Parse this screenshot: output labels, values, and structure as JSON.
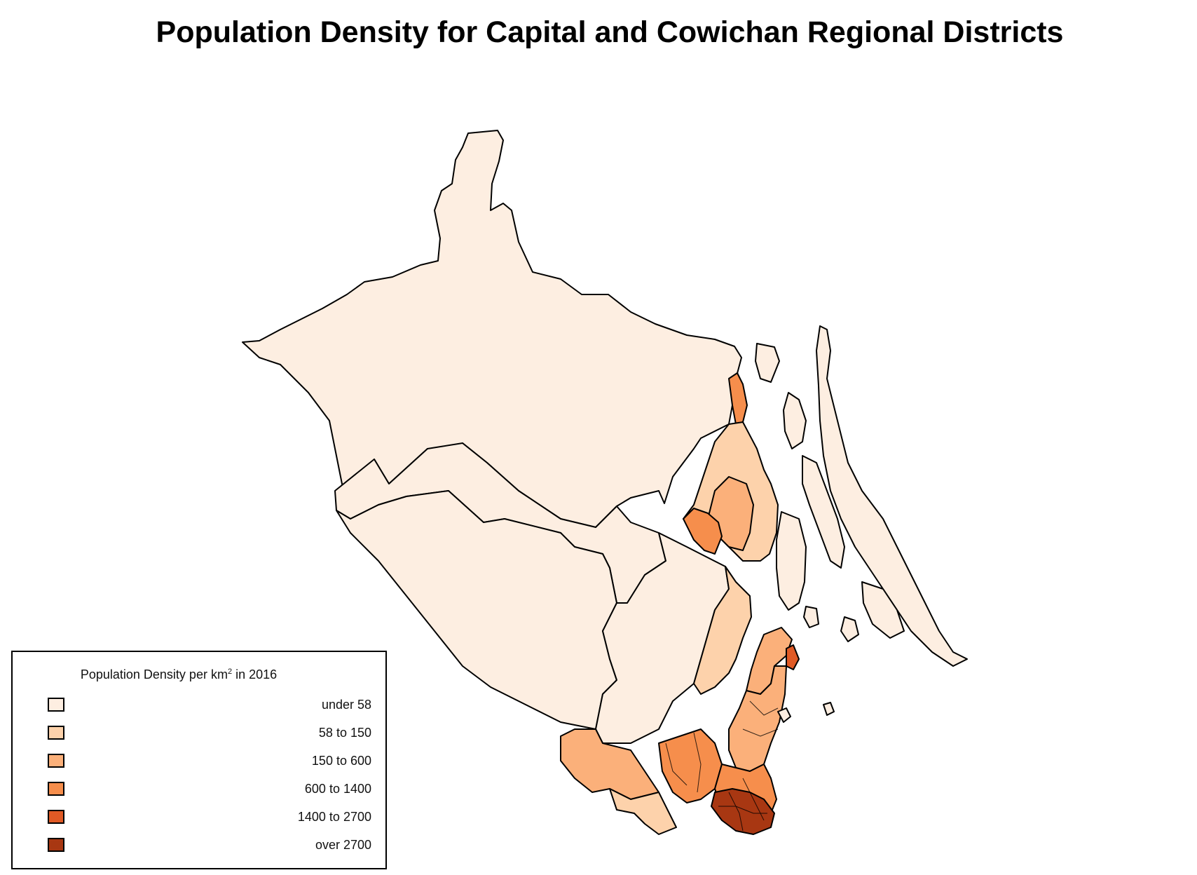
{
  "title": "Population Density for Capital and Cowichan Regional Districts",
  "legend": {
    "title_prefix": "Population Density per km",
    "title_sup": "2",
    "title_suffix": " in 2016",
    "items": [
      {
        "label": "under 58",
        "color": "#fdeee1"
      },
      {
        "label": "58 to 150",
        "color": "#fdd2ab"
      },
      {
        "label": "150 to 600",
        "color": "#fbb07a"
      },
      {
        "label": "600 to 1400",
        "color": "#f68e4c"
      },
      {
        "label": "1400 to 2700",
        "color": "#e05a25"
      },
      {
        "label": "over 2700",
        "color": "#a83712"
      }
    ]
  },
  "map_regions": [
    {
      "name": "west-coast-rural",
      "class": 0
    },
    {
      "name": "cowichan-lake-rural",
      "class": 0
    },
    {
      "name": "southern-interior-rural",
      "class": 0
    },
    {
      "name": "central-rural",
      "class": 0
    },
    {
      "name": "ladysmith",
      "class": 3
    },
    {
      "name": "chemainus-area",
      "class": 1
    },
    {
      "name": "duncan-area",
      "class": 2
    },
    {
      "name": "duncan-core",
      "class": 3
    },
    {
      "name": "mill-bay-corridor",
      "class": 1
    },
    {
      "name": "saanich-peninsula-north",
      "class": 2
    },
    {
      "name": "sidney",
      "class": 4
    },
    {
      "name": "saanich-peninsula-central",
      "class": 2
    },
    {
      "name": "sooke-area",
      "class": 2
    },
    {
      "name": "metchosin-area",
      "class": 1
    },
    {
      "name": "langford-colwood",
      "class": 3
    },
    {
      "name": "saanich",
      "class": 3
    },
    {
      "name": "victoria-core",
      "class": 5
    },
    {
      "name": "gulf-islands",
      "class": 0
    }
  ]
}
